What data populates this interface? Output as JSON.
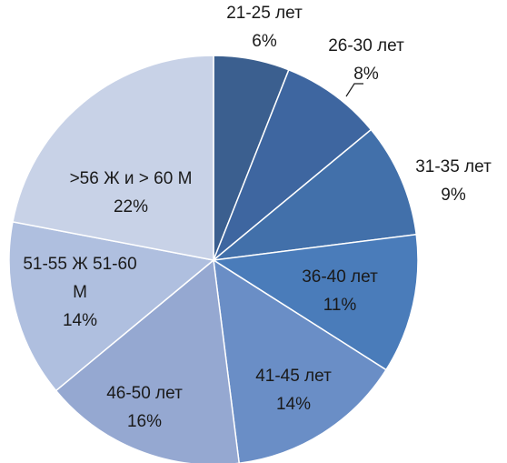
{
  "chart_data": {
    "type": "pie",
    "slices": [
      {
        "label": "21-25 лет",
        "percent_text": "6%",
        "value": 6,
        "color": "#3b5f8f"
      },
      {
        "label": "26-30 лет",
        "percent_text": "8%",
        "value": 8,
        "color": "#3e66a0"
      },
      {
        "label": "31-35 лет",
        "percent_text": "9%",
        "value": 9,
        "color": "#4270aa"
      },
      {
        "label": "36-40 лет",
        "percent_text": "11%",
        "value": 11,
        "color": "#4a7cba"
      },
      {
        "label": "41-45 лет",
        "percent_text": "14%",
        "value": 14,
        "color": "#6a8ec6"
      },
      {
        "label": "46-50 лет",
        "percent_text": "16%",
        "value": 16,
        "color": "#95a8d1"
      },
      {
        "label": "51-55 Ж 51-60 М",
        "label_lines": [
          "51-55 Ж 51-60",
          "М"
        ],
        "percent_text": "14%",
        "value": 14,
        "color": "#afbfdf"
      },
      {
        "label": ">56  Ж и > 60 М",
        "percent_text": "22%",
        "value": 22,
        "color": "#c8d2e7"
      }
    ]
  }
}
